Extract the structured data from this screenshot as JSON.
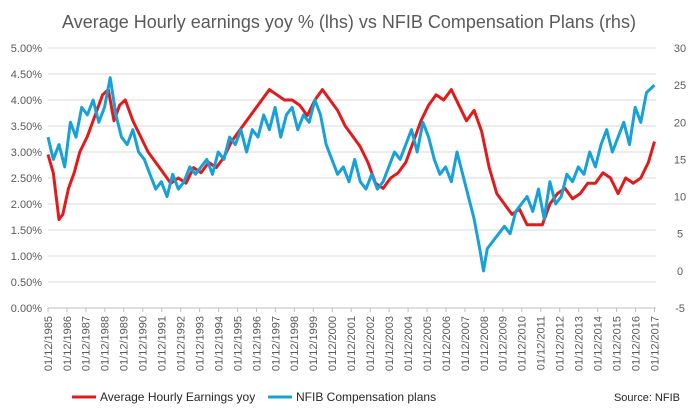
{
  "chart_data": {
    "type": "line",
    "title": "Average Hourly earnings yoy % (lhs) vs NFIB Compensation Plans (rhs)",
    "source": "Source: NFIB",
    "y_left": {
      "range": [
        0,
        5
      ],
      "ticks": [
        "0.00%",
        "0.50%",
        "1.00%",
        "1.50%",
        "2.00%",
        "2.50%",
        "3.00%",
        "3.50%",
        "4.00%",
        "4.50%",
        "5.00%"
      ],
      "tick_values": [
        0,
        0.5,
        1,
        1.5,
        2,
        2.5,
        3,
        3.5,
        4,
        4.5,
        5
      ]
    },
    "y_right": {
      "range": [
        -5,
        30
      ],
      "ticks": [
        "-5",
        "0",
        "5",
        "10",
        "15",
        "20",
        "25",
        "30"
      ],
      "tick_values": [
        -5,
        0,
        5,
        10,
        15,
        20,
        25,
        30
      ]
    },
    "x_axis": {
      "range": [
        1985.92,
        2018.0
      ],
      "tick_labels": [
        "01/12/1985",
        "01/12/1986",
        "01/12/1987",
        "01/12/1988",
        "01/12/1989",
        "01/12/1990",
        "01/12/1991",
        "01/12/1992",
        "01/12/1993",
        "01/12/1994",
        "01/12/1995",
        "01/12/1996",
        "01/12/1997",
        "01/12/1998",
        "01/12/1999",
        "01/12/2000",
        "01/12/2001",
        "01/12/2002",
        "01/12/2003",
        "01/12/2004",
        "01/12/2005",
        "01/12/2006",
        "01/12/2007",
        "01/12/2008",
        "01/12/2009",
        "01/12/2010",
        "01/12/2011",
        "01/12/2012",
        "01/12/2013",
        "01/12/2014",
        "01/12/2015",
        "01/12/2016",
        "01/12/2017"
      ]
    },
    "grid": true,
    "legend_position": "bottom-left",
    "series": [
      {
        "name": "Average Hourly Earnings yoy",
        "axis": "left",
        "color": "#e31a1c",
        "x": [
          1985.92,
          1986.2,
          1986.5,
          1986.7,
          1987.0,
          1987.3,
          1987.6,
          1988.0,
          1988.4,
          1988.8,
          1989.1,
          1989.4,
          1989.7,
          1990.0,
          1990.4,
          1990.8,
          1991.2,
          1991.6,
          1992.0,
          1992.4,
          1992.8,
          1993.2,
          1993.6,
          1994.0,
          1994.4,
          1994.8,
          1995.2,
          1995.6,
          1996.0,
          1996.4,
          1996.8,
          1997.2,
          1997.6,
          1998.0,
          1998.4,
          1998.8,
          1999.2,
          1999.6,
          2000.0,
          2000.4,
          2000.8,
          2001.2,
          2001.6,
          2002.0,
          2002.4,
          2002.8,
          2003.2,
          2003.6,
          2004.0,
          2004.4,
          2004.8,
          2005.2,
          2005.6,
          2006.0,
          2006.4,
          2006.8,
          2007.2,
          2007.6,
          2008.0,
          2008.4,
          2008.8,
          2009.2,
          2009.6,
          2010.0,
          2010.4,
          2010.8,
          2011.2,
          2011.6,
          2012.0,
          2012.4,
          2012.8,
          2013.2,
          2013.6,
          2014.0,
          2014.4,
          2014.8,
          2015.2,
          2015.6,
          2016.0,
          2016.4,
          2016.8,
          2017.2,
          2017.6,
          2017.92
        ],
        "y": [
          2.95,
          2.6,
          1.7,
          1.8,
          2.3,
          2.6,
          3.0,
          3.3,
          3.7,
          4.1,
          4.2,
          3.6,
          3.9,
          4.0,
          3.6,
          3.3,
          3.0,
          2.8,
          2.6,
          2.4,
          2.5,
          2.4,
          2.7,
          2.6,
          2.8,
          2.7,
          2.9,
          3.2,
          3.4,
          3.6,
          3.8,
          4.0,
          4.2,
          4.1,
          4.0,
          4.0,
          3.9,
          3.7,
          4.0,
          4.2,
          4.0,
          3.8,
          3.5,
          3.3,
          3.1,
          2.8,
          2.4,
          2.3,
          2.5,
          2.6,
          2.8,
          3.2,
          3.6,
          3.9,
          4.1,
          4.0,
          4.2,
          3.9,
          3.6,
          3.8,
          3.4,
          2.7,
          2.2,
          2.0,
          1.8,
          1.9,
          1.6,
          1.6,
          1.6,
          2.0,
          2.2,
          2.3,
          2.1,
          2.2,
          2.4,
          2.4,
          2.6,
          2.5,
          2.2,
          2.5,
          2.4,
          2.5,
          2.8,
          3.2
        ]
      },
      {
        "name": "NFIB Compensation plans",
        "axis": "right",
        "color": "#17a1d8",
        "x": [
          1985.92,
          1986.2,
          1986.5,
          1986.8,
          1987.1,
          1987.4,
          1987.7,
          1988.0,
          1988.3,
          1988.6,
          1988.9,
          1989.2,
          1989.5,
          1989.8,
          1990.1,
          1990.4,
          1990.7,
          1991.0,
          1991.3,
          1991.6,
          1991.9,
          1992.2,
          1992.5,
          1992.8,
          1993.1,
          1993.4,
          1993.7,
          1994.0,
          1994.3,
          1994.6,
          1994.9,
          1995.2,
          1995.5,
          1995.8,
          1996.1,
          1996.4,
          1996.7,
          1997.0,
          1997.3,
          1997.6,
          1997.9,
          1998.2,
          1998.5,
          1998.8,
          1999.1,
          1999.4,
          1999.7,
          2000.0,
          2000.3,
          2000.6,
          2000.9,
          2001.2,
          2001.5,
          2001.8,
          2002.1,
          2002.4,
          2002.7,
          2003.0,
          2003.3,
          2003.6,
          2003.9,
          2004.2,
          2004.5,
          2004.8,
          2005.1,
          2005.4,
          2005.7,
          2006.0,
          2006.3,
          2006.6,
          2006.9,
          2007.2,
          2007.5,
          2007.8,
          2008.1,
          2008.4,
          2008.7,
          2008.9,
          2009.1,
          2009.4,
          2009.7,
          2010.0,
          2010.3,
          2010.6,
          2010.9,
          2011.2,
          2011.5,
          2011.8,
          2012.1,
          2012.4,
          2012.7,
          2013.0,
          2013.3,
          2013.6,
          2013.9,
          2014.2,
          2014.5,
          2014.8,
          2015.1,
          2015.4,
          2015.7,
          2016.0,
          2016.3,
          2016.6,
          2016.9,
          2017.2,
          2017.5,
          2017.92
        ],
        "y": [
          18,
          15,
          17,
          14,
          20,
          18,
          22,
          21,
          23,
          20,
          22,
          26,
          21,
          18,
          17,
          19,
          16,
          15,
          13,
          11,
          12,
          10,
          13,
          11,
          12,
          14,
          13,
          14,
          15,
          13,
          16,
          15,
          18,
          17,
          19,
          16,
          19,
          18,
          21,
          19,
          22,
          18,
          21,
          22,
          19,
          21,
          20,
          23,
          21,
          17,
          15,
          13,
          14,
          12,
          15,
          12,
          11,
          13,
          11,
          12,
          14,
          16,
          15,
          17,
          19,
          16,
          20,
          18,
          15,
          13,
          14,
          12,
          16,
          13,
          10,
          7,
          3,
          0,
          3,
          4,
          5,
          6,
          5,
          8,
          9,
          10,
          8,
          11,
          7,
          12,
          9,
          10,
          13,
          12,
          14,
          13,
          16,
          14,
          17,
          19,
          16,
          18,
          20,
          17,
          22,
          20,
          24,
          25
        ]
      }
    ]
  }
}
